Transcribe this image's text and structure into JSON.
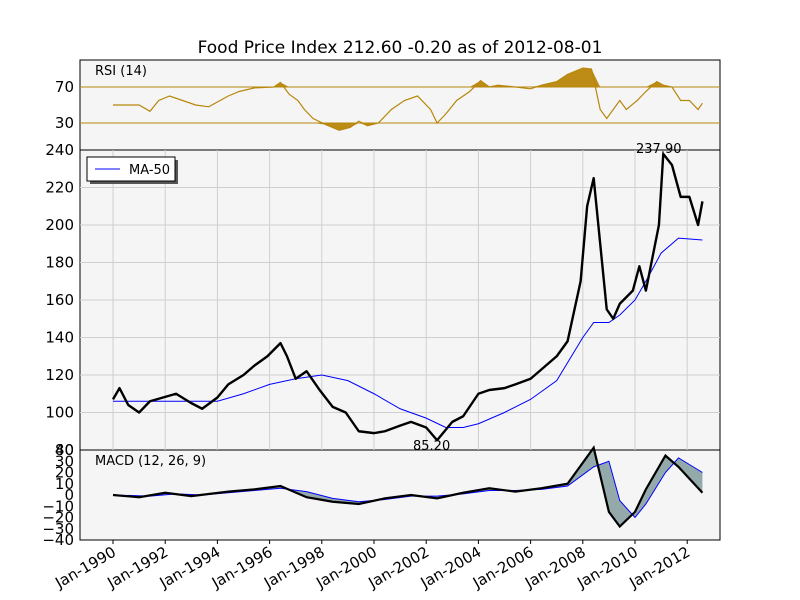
{
  "chart_data": {
    "type": "line",
    "title": "Food Price Index 212.60 -0.20 as of 2012-08-01",
    "x_ticks": [
      "Jan-1990",
      "Jan-1992",
      "Jan-1994",
      "Jan-1996",
      "Jan-1998",
      "Jan-2000",
      "Jan-2002",
      "Jan-2004",
      "Jan-2006",
      "Jan-2008",
      "Jan-2010",
      "Jan-2012"
    ],
    "colors": {
      "price": "#000000",
      "ma": "#0000ff",
      "rsi": "#b8860b",
      "rsi_fill": "#b8860b",
      "macd_fill": "#5f7f7f"
    },
    "panels": {
      "rsi": {
        "label": "RSI (14)",
        "ylim": [
          0,
          100
        ],
        "levels": [
          70,
          30
        ],
        "y_ticks": [
          "70",
          "30"
        ],
        "series": [
          {
            "x": "1990-01",
            "y": 50
          },
          {
            "x": "1991-01",
            "y": 50
          },
          {
            "x": "1991-06",
            "y": 43
          },
          {
            "x": "1991-10",
            "y": 55
          },
          {
            "x": "1992-03",
            "y": 60
          },
          {
            "x": "1992-09",
            "y": 55
          },
          {
            "x": "1993-03",
            "y": 50
          },
          {
            "x": "1993-09",
            "y": 48
          },
          {
            "x": "1994-06",
            "y": 60
          },
          {
            "x": "1994-11",
            "y": 65
          },
          {
            "x": "1995-06",
            "y": 69
          },
          {
            "x": "1996-03",
            "y": 70
          },
          {
            "x": "1996-06",
            "y": 75
          },
          {
            "x": "1996-10",
            "y": 62
          },
          {
            "x": "1997-02",
            "y": 55
          },
          {
            "x": "1997-05",
            "y": 45
          },
          {
            "x": "1997-09",
            "y": 35
          },
          {
            "x": "1998-03",
            "y": 28
          },
          {
            "x": "1998-09",
            "y": 22
          },
          {
            "x": "1999-02",
            "y": 25
          },
          {
            "x": "1999-06",
            "y": 32
          },
          {
            "x": "1999-10",
            "y": 27
          },
          {
            "x": "2000-03",
            "y": 30
          },
          {
            "x": "2000-09",
            "y": 45
          },
          {
            "x": "2001-03",
            "y": 55
          },
          {
            "x": "2001-09",
            "y": 60
          },
          {
            "x": "2002-03",
            "y": 45
          },
          {
            "x": "2002-06",
            "y": 30
          },
          {
            "x": "2002-10",
            "y": 40
          },
          {
            "x": "2003-03",
            "y": 55
          },
          {
            "x": "2003-09",
            "y": 65
          },
          {
            "x": "2004-02",
            "y": 77
          },
          {
            "x": "2004-06",
            "y": 70
          },
          {
            "x": "2004-10",
            "y": 72
          },
          {
            "x": "2005-06",
            "y": 70
          },
          {
            "x": "2006-01",
            "y": 68
          },
          {
            "x": "2006-06",
            "y": 72
          },
          {
            "x": "2007-01",
            "y": 76
          },
          {
            "x": "2007-06",
            "y": 84
          },
          {
            "x": "2008-01",
            "y": 91
          },
          {
            "x": "2008-05",
            "y": 90
          },
          {
            "x": "2008-09",
            "y": 45
          },
          {
            "x": "2008-12",
            "y": 35
          },
          {
            "x": "2009-06",
            "y": 55
          },
          {
            "x": "2009-09",
            "y": 45
          },
          {
            "x": "2010-02",
            "y": 55
          },
          {
            "x": "2010-06",
            "y": 65
          },
          {
            "x": "2010-11",
            "y": 76
          },
          {
            "x": "2011-02",
            "y": 72
          },
          {
            "x": "2011-06",
            "y": 70
          },
          {
            "x": "2011-10",
            "y": 55
          },
          {
            "x": "2012-02",
            "y": 55
          },
          {
            "x": "2012-06",
            "y": 45
          },
          {
            "x": "2012-08",
            "y": 52
          }
        ]
      },
      "price": {
        "ylim": [
          80,
          240
        ],
        "y_ticks": [
          "240",
          "220",
          "200",
          "180",
          "160",
          "140",
          "120",
          "100",
          "80"
        ],
        "legend": "MA-50",
        "annotations": [
          {
            "text": "237.90",
            "x": "2011-02",
            "y": 237.9
          },
          {
            "text": "85.20",
            "x": "2002-06",
            "y": 85.2
          }
        ],
        "price_series": [
          {
            "x": "1990-01",
            "y": 107
          },
          {
            "x": "1990-04",
            "y": 113
          },
          {
            "x": "1990-08",
            "y": 104
          },
          {
            "x": "1991-01",
            "y": 100
          },
          {
            "x": "1991-06",
            "y": 106
          },
          {
            "x": "1991-12",
            "y": 108
          },
          {
            "x": "1992-06",
            "y": 110
          },
          {
            "x": "1993-01",
            "y": 105
          },
          {
            "x": "1993-06",
            "y": 102
          },
          {
            "x": "1994-01",
            "y": 108
          },
          {
            "x": "1994-06",
            "y": 115
          },
          {
            "x": "1995-01",
            "y": 120
          },
          {
            "x": "1995-06",
            "y": 125
          },
          {
            "x": "1995-12",
            "y": 130
          },
          {
            "x": "1996-06",
            "y": 137
          },
          {
            "x": "1996-09",
            "y": 130
          },
          {
            "x": "1997-01",
            "y": 118
          },
          {
            "x": "1997-06",
            "y": 122
          },
          {
            "x": "1997-12",
            "y": 112
          },
          {
            "x": "1998-06",
            "y": 103
          },
          {
            "x": "1998-12",
            "y": 100
          },
          {
            "x": "1999-06",
            "y": 90
          },
          {
            "x": "2000-01",
            "y": 89
          },
          {
            "x": "2000-06",
            "y": 90
          },
          {
            "x": "2001-01",
            "y": 93
          },
          {
            "x": "2001-06",
            "y": 95
          },
          {
            "x": "2002-01",
            "y": 92
          },
          {
            "x": "2002-06",
            "y": 85.2
          },
          {
            "x": "2003-01",
            "y": 95
          },
          {
            "x": "2003-06",
            "y": 98
          },
          {
            "x": "2004-01",
            "y": 110
          },
          {
            "x": "2004-06",
            "y": 112
          },
          {
            "x": "2005-01",
            "y": 113
          },
          {
            "x": "2005-06",
            "y": 115
          },
          {
            "x": "2006-01",
            "y": 118
          },
          {
            "x": "2006-06",
            "y": 123
          },
          {
            "x": "2007-01",
            "y": 130
          },
          {
            "x": "2007-06",
            "y": 138
          },
          {
            "x": "2007-12",
            "y": 170
          },
          {
            "x": "2008-03",
            "y": 210
          },
          {
            "x": "2008-06",
            "y": 225
          },
          {
            "x": "2008-09",
            "y": 190
          },
          {
            "x": "2008-12",
            "y": 155
          },
          {
            "x": "2009-03",
            "y": 150
          },
          {
            "x": "2009-06",
            "y": 158
          },
          {
            "x": "2009-12",
            "y": 165
          },
          {
            "x": "2010-03",
            "y": 178
          },
          {
            "x": "2010-06",
            "y": 165
          },
          {
            "x": "2010-12",
            "y": 200
          },
          {
            "x": "2011-02",
            "y": 237.9
          },
          {
            "x": "2011-06",
            "y": 232
          },
          {
            "x": "2011-10",
            "y": 215
          },
          {
            "x": "2012-02",
            "y": 215
          },
          {
            "x": "2012-06",
            "y": 200
          },
          {
            "x": "2012-08",
            "y": 212.6
          }
        ],
        "ma_series": [
          {
            "x": "1990-01",
            "y": 106
          },
          {
            "x": "1992-01",
            "y": 106
          },
          {
            "x": "1994-01",
            "y": 106
          },
          {
            "x": "1995-01",
            "y": 110
          },
          {
            "x": "1996-01",
            "y": 115
          },
          {
            "x": "1997-01",
            "y": 118
          },
          {
            "x": "1998-01",
            "y": 120
          },
          {
            "x": "1999-01",
            "y": 117
          },
          {
            "x": "2000-01",
            "y": 110
          },
          {
            "x": "2001-01",
            "y": 102
          },
          {
            "x": "2002-01",
            "y": 97
          },
          {
            "x": "2002-10",
            "y": 92
          },
          {
            "x": "2003-06",
            "y": 92
          },
          {
            "x": "2004-01",
            "y": 94
          },
          {
            "x": "2005-01",
            "y": 100
          },
          {
            "x": "2006-01",
            "y": 107
          },
          {
            "x": "2007-01",
            "y": 117
          },
          {
            "x": "2008-01",
            "y": 140
          },
          {
            "x": "2008-06",
            "y": 148
          },
          {
            "x": "2009-01",
            "y": 148
          },
          {
            "x": "2009-06",
            "y": 152
          },
          {
            "x": "2010-01",
            "y": 160
          },
          {
            "x": "2010-06",
            "y": 170
          },
          {
            "x": "2011-01",
            "y": 185
          },
          {
            "x": "2011-09",
            "y": 193
          },
          {
            "x": "2012-08",
            "y": 192
          }
        ]
      },
      "macd": {
        "label": "MACD (12, 26, 9)",
        "ylim": [
          -40,
          40
        ],
        "y_ticks": [
          "40",
          "30",
          "20",
          "10",
          "0",
          "−10",
          "−20",
          "−30",
          "−40"
        ],
        "macd_series": [
          {
            "x": "1990-01",
            "y": 0
          },
          {
            "x": "1991-01",
            "y": -2
          },
          {
            "x": "1992-01",
            "y": 2
          },
          {
            "x": "1993-01",
            "y": -1
          },
          {
            "x": "1994-06",
            "y": 3
          },
          {
            "x": "1995-06",
            "y": 5
          },
          {
            "x": "1996-06",
            "y": 8
          },
          {
            "x": "1997-06",
            "y": -2
          },
          {
            "x": "1998-06",
            "y": -6
          },
          {
            "x": "1999-06",
            "y": -8
          },
          {
            "x": "2000-06",
            "y": -3
          },
          {
            "x": "2001-06",
            "y": 0
          },
          {
            "x": "2002-06",
            "y": -3
          },
          {
            "x": "2003-06",
            "y": 2
          },
          {
            "x": "2004-06",
            "y": 6
          },
          {
            "x": "2005-06",
            "y": 3
          },
          {
            "x": "2006-06",
            "y": 6
          },
          {
            "x": "2007-06",
            "y": 10
          },
          {
            "x": "2008-06",
            "y": 42
          },
          {
            "x": "2009-01",
            "y": -15
          },
          {
            "x": "2009-06",
            "y": -28
          },
          {
            "x": "2010-01",
            "y": -15
          },
          {
            "x": "2010-06",
            "y": 5
          },
          {
            "x": "2011-03",
            "y": 35
          },
          {
            "x": "2011-09",
            "y": 25
          },
          {
            "x": "2012-08",
            "y": 2
          }
        ],
        "signal_series": [
          {
            "x": "1990-01",
            "y": 0
          },
          {
            "x": "1991-06",
            "y": -1
          },
          {
            "x": "1992-06",
            "y": 1
          },
          {
            "x": "1993-06",
            "y": 0
          },
          {
            "x": "1994-06",
            "y": 2
          },
          {
            "x": "1995-06",
            "y": 4
          },
          {
            "x": "1996-06",
            "y": 6
          },
          {
            "x": "1997-06",
            "y": 3
          },
          {
            "x": "1998-06",
            "y": -3
          },
          {
            "x": "1999-06",
            "y": -6
          },
          {
            "x": "2000-06",
            "y": -4
          },
          {
            "x": "2001-06",
            "y": -1
          },
          {
            "x": "2002-06",
            "y": -1
          },
          {
            "x": "2003-06",
            "y": 1
          },
          {
            "x": "2004-06",
            "y": 4
          },
          {
            "x": "2005-06",
            "y": 4
          },
          {
            "x": "2006-06",
            "y": 5
          },
          {
            "x": "2007-06",
            "y": 8
          },
          {
            "x": "2008-06",
            "y": 25
          },
          {
            "x": "2009-01",
            "y": 30
          },
          {
            "x": "2009-06",
            "y": -5
          },
          {
            "x": "2010-01",
            "y": -20
          },
          {
            "x": "2010-06",
            "y": -8
          },
          {
            "x": "2011-03",
            "y": 20
          },
          {
            "x": "2011-09",
            "y": 33
          },
          {
            "x": "2012-08",
            "y": 20
          }
        ]
      }
    }
  }
}
